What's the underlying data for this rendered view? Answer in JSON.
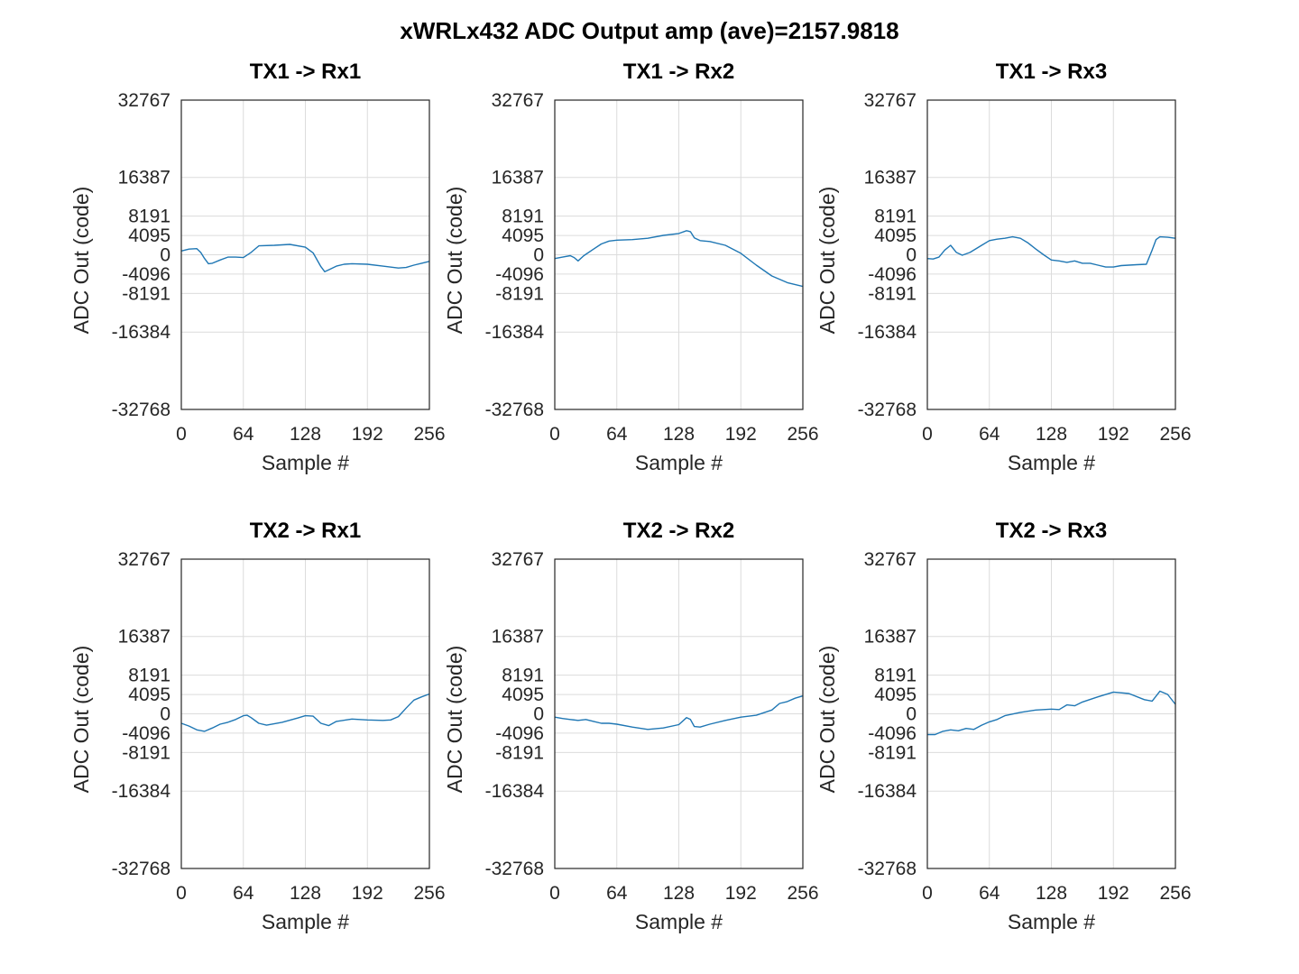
{
  "figure": {
    "title": "xWRLx432 ADC Output  amp (ave)=2157.9818",
    "line_color": "#1f77b4"
  },
  "chart_data": [
    {
      "type": "line",
      "title": "TX1 -> Rx1",
      "xlabel": "Sample #",
      "ylabel": "ADC Out (code)",
      "xlim": [
        0,
        256
      ],
      "ylim": [
        -32768,
        32767
      ],
      "xticks": [
        0,
        64,
        128,
        192,
        256
      ],
      "yticks": [
        -32768,
        -16384,
        -8191,
        -4096,
        0,
        4095,
        8191,
        16387,
        32767
      ],
      "grid": true,
      "series": [
        {
          "x": [
            0,
            8,
            16,
            20,
            24,
            28,
            32,
            40,
            48,
            56,
            64,
            72,
            80,
            96,
            112,
            128,
            136,
            144,
            148,
            152,
            160,
            168,
            176,
            192,
            208,
            224,
            232,
            240,
            248,
            256
          ],
          "y": [
            800,
            1200,
            1300,
            500,
            -800,
            -1900,
            -1800,
            -1100,
            -500,
            -500,
            -600,
            500,
            1900,
            2000,
            2200,
            1600,
            400,
            -2500,
            -3600,
            -3200,
            -2400,
            -2000,
            -1900,
            -2000,
            -2400,
            -2800,
            -2700,
            -2200,
            -1800,
            -1400
          ]
        }
      ]
    },
    {
      "type": "line",
      "title": "TX1 -> Rx2",
      "xlabel": "Sample #",
      "ylabel": "ADC Out (code)",
      "xlim": [
        0,
        256
      ],
      "ylim": [
        -32768,
        32767
      ],
      "xticks": [
        0,
        64,
        128,
        192,
        256
      ],
      "yticks": [
        -32768,
        -16384,
        -8191,
        -4096,
        0,
        4095,
        8191,
        16387,
        32767
      ],
      "grid": true,
      "series": [
        {
          "x": [
            0,
            8,
            16,
            20,
            24,
            30,
            40,
            48,
            56,
            64,
            80,
            96,
            112,
            128,
            136,
            140,
            144,
            150,
            160,
            176,
            192,
            208,
            224,
            240,
            256
          ],
          "y": [
            -800,
            -500,
            -200,
            -600,
            -1300,
            -200,
            1200,
            2300,
            2900,
            3100,
            3200,
            3500,
            4100,
            4500,
            5100,
            4900,
            3600,
            3000,
            2800,
            2000,
            300,
            -2200,
            -4500,
            -5900,
            -6700
          ]
        }
      ]
    },
    {
      "type": "line",
      "title": "TX1 -> Rx3",
      "xlabel": "Sample #",
      "ylabel": "ADC Out (code)",
      "xlim": [
        0,
        256
      ],
      "ylim": [
        -32768,
        32767
      ],
      "xticks": [
        0,
        64,
        128,
        192,
        256
      ],
      "yticks": [
        -32768,
        -16384,
        -8191,
        -4096,
        0,
        4095,
        8191,
        16387,
        32767
      ],
      "grid": true,
      "series": [
        {
          "x": [
            0,
            6,
            12,
            18,
            24,
            30,
            36,
            44,
            56,
            64,
            72,
            80,
            88,
            96,
            104,
            112,
            120,
            128,
            136,
            144,
            152,
            160,
            168,
            176,
            184,
            192,
            200,
            216,
            226,
            232,
            236,
            240,
            248,
            256
          ],
          "y": [
            -800,
            -900,
            -500,
            1000,
            2000,
            500,
            -100,
            500,
            2000,
            3000,
            3300,
            3500,
            3800,
            3500,
            2500,
            1200,
            0,
            -1100,
            -1300,
            -1600,
            -1300,
            -1800,
            -1800,
            -2200,
            -2600,
            -2600,
            -2300,
            -2100,
            -2000,
            1000,
            3200,
            3800,
            3700,
            3500
          ]
        }
      ]
    },
    {
      "type": "line",
      "title": "TX2 -> Rx1",
      "xlabel": "Sample #",
      "ylabel": "ADC Out (code)",
      "xlim": [
        0,
        256
      ],
      "ylim": [
        -32768,
        32767
      ],
      "xticks": [
        0,
        64,
        128,
        192,
        256
      ],
      "yticks": [
        -32768,
        -16384,
        -8191,
        -4096,
        0,
        4095,
        8191,
        16387,
        32767
      ],
      "grid": true,
      "series": [
        {
          "x": [
            0,
            8,
            16,
            24,
            32,
            40,
            48,
            56,
            64,
            68,
            72,
            80,
            88,
            104,
            120,
            128,
            136,
            144,
            152,
            160,
            176,
            192,
            208,
            216,
            224,
            232,
            240,
            248,
            256
          ],
          "y": [
            -2000,
            -2600,
            -3400,
            -3700,
            -3000,
            -2200,
            -1800,
            -1200,
            -400,
            -300,
            -800,
            -2000,
            -2400,
            -1800,
            -900,
            -400,
            -500,
            -2000,
            -2500,
            -1600,
            -1100,
            -1300,
            -1400,
            -1300,
            -600,
            1200,
            2900,
            3600,
            4200
          ]
        }
      ]
    },
    {
      "type": "line",
      "title": "TX2 -> Rx2",
      "xlabel": "Sample #",
      "ylabel": "ADC Out (code)",
      "xlim": [
        0,
        256
      ],
      "ylim": [
        -32768,
        32767
      ],
      "xticks": [
        0,
        64,
        128,
        192,
        256
      ],
      "yticks": [
        -32768,
        -16384,
        -8191,
        -4096,
        0,
        4095,
        8191,
        16387,
        32767
      ],
      "grid": true,
      "series": [
        {
          "x": [
            0,
            8,
            16,
            24,
            32,
            40,
            48,
            56,
            64,
            80,
            96,
            112,
            128,
            136,
            140,
            144,
            150,
            160,
            176,
            192,
            208,
            224,
            232,
            240,
            248,
            256
          ],
          "y": [
            -700,
            -1000,
            -1200,
            -1400,
            -1200,
            -1600,
            -2000,
            -2000,
            -2200,
            -2800,
            -3300,
            -3000,
            -2300,
            -800,
            -1200,
            -2700,
            -2800,
            -2200,
            -1400,
            -700,
            -300,
            800,
            2200,
            2600,
            3300,
            3800
          ]
        }
      ]
    },
    {
      "type": "line",
      "title": "TX2 -> Rx3",
      "xlabel": "Sample #",
      "ylabel": "ADC Out (code)",
      "xlim": [
        0,
        256
      ],
      "ylim": [
        -32768,
        32767
      ],
      "xticks": [
        0,
        64,
        128,
        192,
        256
      ],
      "yticks": [
        -32768,
        -16384,
        -8191,
        -4096,
        0,
        4095,
        8191,
        16387,
        32767
      ],
      "grid": true,
      "series": [
        {
          "x": [
            0,
            8,
            16,
            24,
            32,
            40,
            48,
            56,
            64,
            72,
            80,
            96,
            112,
            128,
            136,
            144,
            152,
            160,
            176,
            192,
            208,
            224,
            232,
            240,
            248,
            256
          ],
          "y": [
            -4400,
            -4400,
            -3700,
            -3400,
            -3600,
            -3100,
            -3300,
            -2400,
            -1700,
            -1200,
            -400,
            300,
            800,
            1000,
            900,
            1900,
            1700,
            2500,
            3600,
            4600,
            4300,
            3000,
            2700,
            4800,
            4100,
            2000
          ]
        }
      ]
    }
  ]
}
